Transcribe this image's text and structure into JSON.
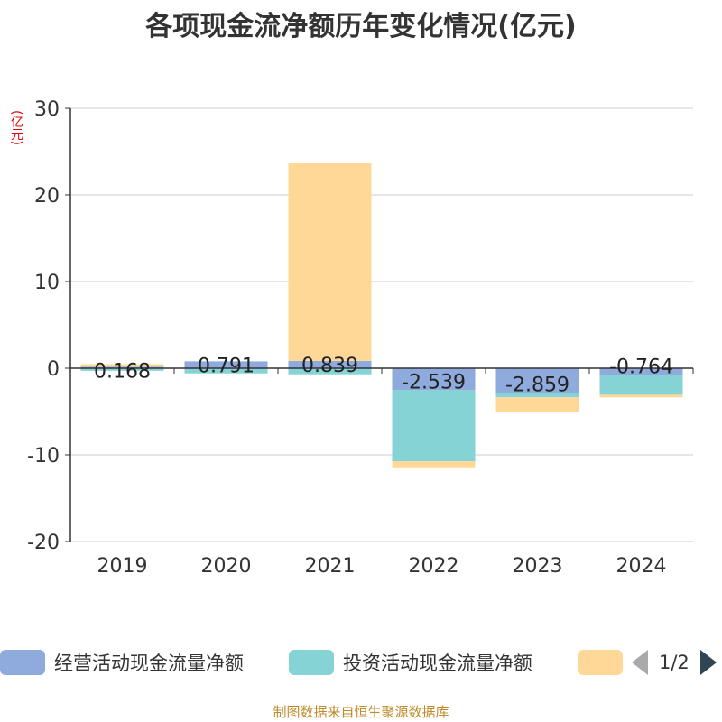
{
  "chart_data": {
    "type": "bar",
    "stacked": true,
    "title": "各项现金流净额历年变化情况(亿元)",
    "unit_label": "(亿元)",
    "categories": [
      "2019",
      "2020",
      "2021",
      "2022",
      "2023",
      "2024"
    ],
    "ylim": [
      -20,
      30
    ],
    "yticks": [
      -20,
      -10,
      0,
      10,
      20,
      30
    ],
    "grid": true,
    "legend_position": "bottom",
    "series": [
      {
        "name": "经营活动现金流量净额",
        "color": "#8faadc",
        "values": [
          0.168,
          0.791,
          0.839,
          -2.539,
          -2.859,
          -0.764
        ],
        "labels": [
          "0.168",
          "0.791",
          "0.839",
          "-2.539",
          "-2.859",
          "-0.764"
        ]
      },
      {
        "name": "投资活动现金流量净额",
        "color": "#86d3d6",
        "values": [
          -0.3,
          -0.6,
          -0.7,
          -8.2,
          -0.5,
          -2.3
        ]
      },
      {
        "name": "",
        "color": "#ffd897",
        "values": [
          0.3,
          0.0,
          22.8,
          -0.8,
          -1.7,
          -0.3
        ]
      }
    ]
  },
  "legend": {
    "items": [
      {
        "label": "经营活动现金流量净额",
        "color": "#8faadc"
      },
      {
        "label": "投资活动现金流量净额",
        "color": "#86d3d6"
      },
      {
        "label": "",
        "color": "#ffd897"
      }
    ],
    "page": "1/2"
  },
  "source": "制图数据来自恒生聚源数据库"
}
